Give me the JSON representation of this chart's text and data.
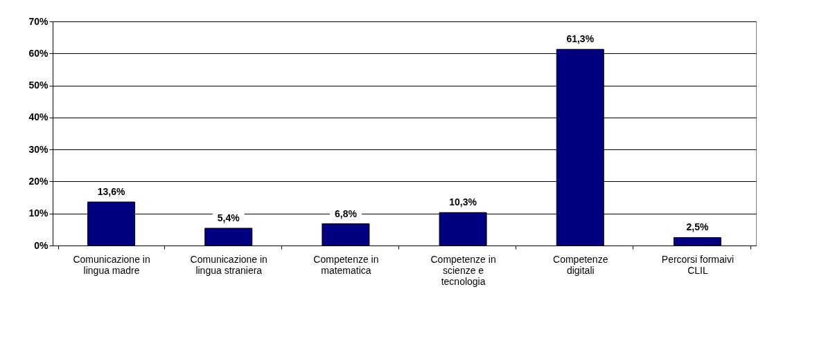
{
  "chart_data": {
    "type": "bar",
    "categories": [
      "Comunicazione in lingua madre",
      "Comunicazione in lingua straniera",
      "Competenze in matematica",
      "Competenze in scienze e tecnologia",
      "Competenze digitali",
      "Percorsi formaivi CLIL"
    ],
    "values": [
      13.6,
      5.4,
      6.8,
      10.3,
      61.3,
      2.5
    ],
    "value_labels": [
      "13,6%",
      "5,4%",
      "6,8%",
      "10,3%",
      "61,3%",
      "2,5%"
    ],
    "color": "#000080",
    "ylim": [
      0,
      70
    ],
    "yticks": [
      {
        "value": 0,
        "label": "0%"
      },
      {
        "value": 10,
        "label": "10%"
      },
      {
        "value": 20,
        "label": "20%"
      },
      {
        "value": 30,
        "label": "30%"
      },
      {
        "value": 40,
        "label": "40%"
      },
      {
        "value": 50,
        "label": "50%"
      },
      {
        "value": 60,
        "label": "60%"
      },
      {
        "value": 70,
        "label": "70%"
      }
    ],
    "grid": "y"
  }
}
